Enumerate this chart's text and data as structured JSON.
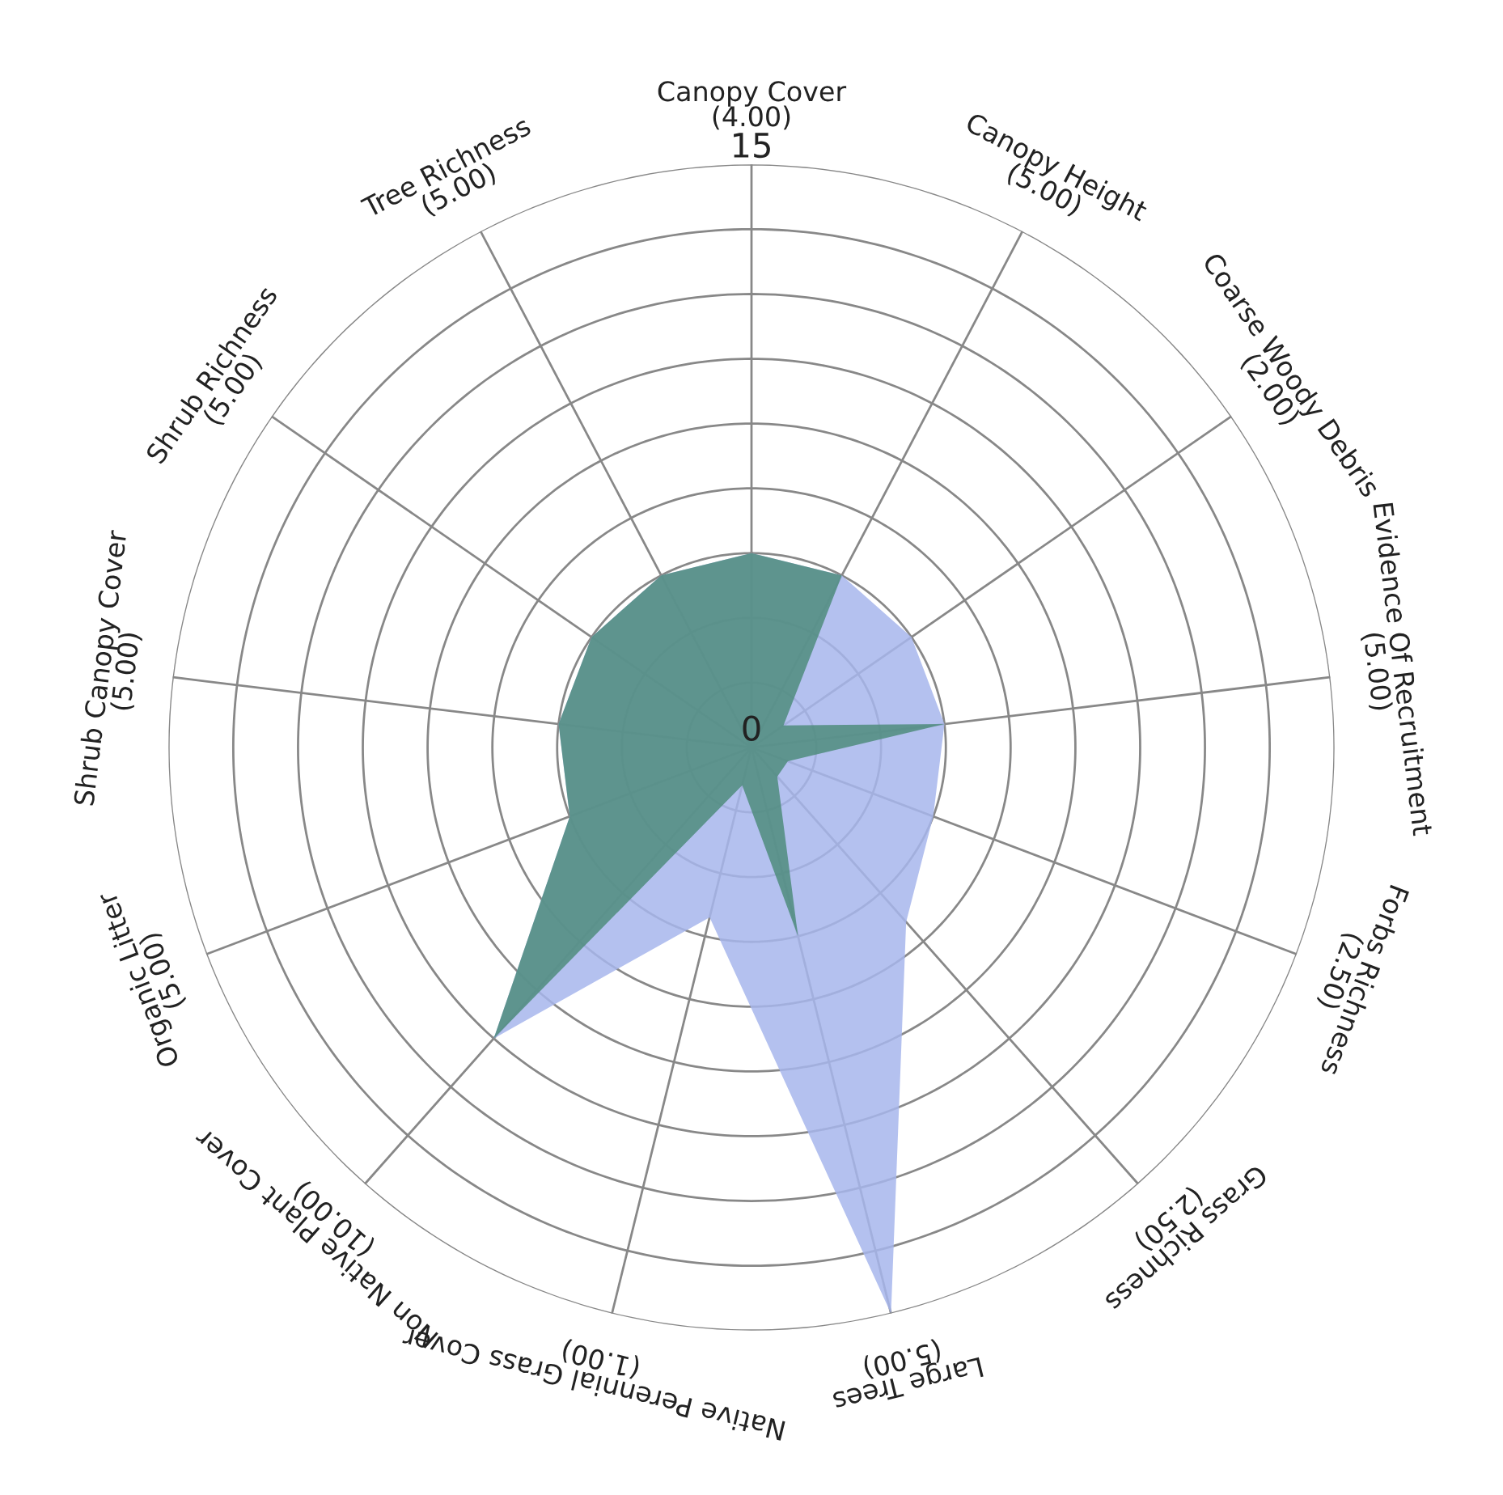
{
  "chart_data": {
    "type": "radar",
    "categories": [
      "Canopy Cover\n(4.00)",
      "Canopy Height\n(5.00)",
      "Coarse Woody Debris\n(2.00)",
      "Evidence Of Recruitment\n(5.00)",
      "Forbs Richness\n(2.50)",
      "Grass Richness\n(2.50)",
      "Large Trees\n(5.00)",
      "Native Perennial Grass Cover\n(1.00)",
      "Non Native Plant Cover\n(10.00)",
      "Organic Litter\n(5.00)",
      "Shrub Canopy Cover\n(5.00)",
      "Shrub Richness\n(5.00)",
      "Tree Richness\n(5.00)"
    ],
    "series": [
      {
        "color": "#a7b6ec",
        "values": [
          5,
          5,
          5,
          5,
          5,
          6,
          15,
          4.5,
          10,
          5,
          5,
          5,
          5
        ]
      },
      {
        "color": "#4f8c7c",
        "values": [
          5,
          5,
          1,
          5,
          1,
          1,
          5,
          1,
          10,
          5,
          5,
          5,
          5
        ]
      }
    ],
    "ylim": [
      0,
      15
    ],
    "yticks": [
      0,
      15
    ],
    "grid": true
  }
}
